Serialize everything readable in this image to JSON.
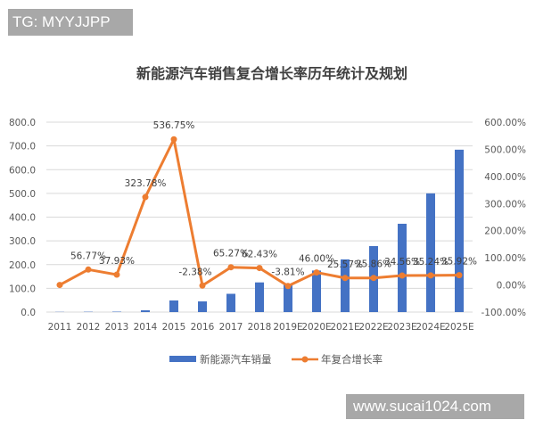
{
  "watermarks": {
    "top_left": "TG: MYYJJPP",
    "bottom_right": "www.sucai1024.com"
  },
  "chart_data": {
    "type": "bar+line",
    "title": "新能源汽车销售复合增长率历年统计及规划",
    "categories": [
      "2011",
      "2012",
      "2013",
      "2014",
      "2015",
      "2016",
      "2017",
      "2018",
      "2019E",
      "2020E",
      "2021E",
      "2022E",
      "2023E",
      "2024E",
      "2025E"
    ],
    "series": [
      {
        "name": "新能源汽车销量",
        "type": "bar",
        "axis": "left",
        "color": "#4472C4",
        "values": [
          0.8,
          1.3,
          1.8,
          7.5,
          49,
          45,
          77,
          125,
          115,
          175,
          222,
          278,
          372,
          500,
          684
        ]
      },
      {
        "name": "年复合增长率",
        "type": "line",
        "axis": "right",
        "color": "#ED7D31",
        "values": [
          0,
          56.77,
          37.93,
          323.78,
          536.75,
          -2.38,
          65.27,
          62.43,
          -3.81,
          46.0,
          25.57,
          25.86,
          34.56,
          35.24,
          35.92
        ],
        "labels": [
          "",
          "56.77%",
          "37.93%",
          "323.78%",
          "536.75%",
          "-2.38%",
          "65.27%",
          "62.43%",
          "-3.81%",
          "46.00%",
          "25.57%",
          "25.86%",
          "34.56%",
          "35.24%",
          "35.92%"
        ]
      }
    ],
    "y_left": {
      "range": [
        0,
        800
      ],
      "ticks": [
        "0.0",
        "100.0",
        "200.0",
        "300.0",
        "400.0",
        "500.0",
        "600.0",
        "700.0",
        "800.0"
      ]
    },
    "y_right": {
      "range": [
        -100,
        600
      ],
      "ticks": [
        "-100.00%",
        "0.00%",
        "100.00%",
        "200.00%",
        "300.00%",
        "400.00%",
        "500.00%",
        "600.00%"
      ]
    },
    "grid": true,
    "legend": "bottom"
  }
}
